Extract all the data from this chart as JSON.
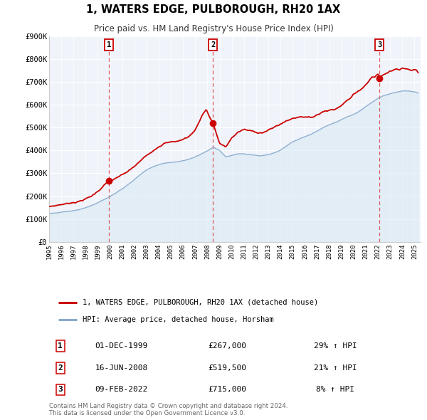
{
  "title": "1, WATERS EDGE, PULBOROUGH, RH20 1AX",
  "subtitle": "Price paid vs. HM Land Registry's House Price Index (HPI)",
  "property_label": "1, WATERS EDGE, PULBOROUGH, RH20 1AX (detached house)",
  "hpi_label": "HPI: Average price, detached house, Horsham",
  "property_color": "#cc0000",
  "hpi_color": "#88aacc",
  "hpi_fill_color": "#d8e8f4",
  "bg_color": "#f0f4fa",
  "ylim": [
    0,
    900000
  ],
  "yticks": [
    0,
    100000,
    200000,
    300000,
    400000,
    500000,
    600000,
    700000,
    800000,
    900000
  ],
  "ytick_labels": [
    "£0",
    "£100K",
    "£200K",
    "£300K",
    "£400K",
    "£500K",
    "£600K",
    "£700K",
    "£800K",
    "£900K"
  ],
  "xmin": 1995.0,
  "xmax": 2025.5,
  "sales": [
    {
      "num": 1,
      "date_str": "01-DEC-1999",
      "price": 267000,
      "pct": "29%",
      "x": 1999.92
    },
    {
      "num": 2,
      "date_str": "16-JUN-2008",
      "price": 519500,
      "pct": "21%",
      "x": 2008.46
    },
    {
      "num": 3,
      "date_str": "09-FEB-2022",
      "price": 715000,
      "pct": "8%",
      "x": 2022.12
    }
  ],
  "footer": "Contains HM Land Registry data © Crown copyright and database right 2024.\nThis data is licensed under the Open Government Licence v3.0.",
  "legend_border_color": "#aaaaaa",
  "sale_marker_color": "#cc0000",
  "vline_color": "#dd3333",
  "prop_anchors_x": [
    1995.0,
    1995.5,
    1996.0,
    1996.5,
    1997.0,
    1997.5,
    1998.0,
    1998.5,
    1999.0,
    1999.5,
    1999.92,
    2000.5,
    2001.0,
    2001.5,
    2002.0,
    2002.5,
    2003.0,
    2003.5,
    2004.0,
    2004.5,
    2005.0,
    2005.5,
    2006.0,
    2006.5,
    2007.0,
    2007.5,
    2007.9,
    2008.46,
    2009.0,
    2009.5,
    2010.0,
    2010.5,
    2011.0,
    2011.5,
    2012.0,
    2012.5,
    2013.0,
    2013.5,
    2014.0,
    2014.5,
    2015.0,
    2015.5,
    2016.0,
    2016.5,
    2017.0,
    2017.5,
    2018.0,
    2018.5,
    2019.0,
    2019.5,
    2020.0,
    2020.5,
    2021.0,
    2021.5,
    2022.0,
    2022.12,
    2022.5,
    2023.0,
    2023.5,
    2024.0,
    2024.5,
    2025.0,
    2025.3
  ],
  "prop_anchors_y": [
    155000,
    158000,
    163000,
    168000,
    172000,
    178000,
    188000,
    200000,
    220000,
    248000,
    267000,
    280000,
    295000,
    310000,
    330000,
    355000,
    378000,
    395000,
    415000,
    432000,
    438000,
    440000,
    448000,
    462000,
    490000,
    545000,
    580000,
    519500,
    430000,
    415000,
    455000,
    480000,
    492000,
    488000,
    478000,
    475000,
    490000,
    502000,
    515000,
    530000,
    540000,
    545000,
    545000,
    543000,
    555000,
    568000,
    574000,
    578000,
    595000,
    620000,
    645000,
    660000,
    685000,
    720000,
    730000,
    715000,
    730000,
    745000,
    755000,
    758000,
    752000,
    745000,
    740000
  ],
  "hpi_anchors_x": [
    1995.0,
    1995.5,
    1996.0,
    1996.5,
    1997.0,
    1997.5,
    1998.0,
    1998.5,
    1999.0,
    1999.5,
    2000.0,
    2000.5,
    2001.0,
    2001.5,
    2002.0,
    2002.5,
    2003.0,
    2003.5,
    2004.0,
    2004.5,
    2005.0,
    2005.5,
    2006.0,
    2006.5,
    2007.0,
    2007.5,
    2008.0,
    2008.5,
    2009.0,
    2009.5,
    2010.0,
    2010.5,
    2011.0,
    2011.5,
    2012.0,
    2012.5,
    2013.0,
    2013.5,
    2014.0,
    2014.5,
    2015.0,
    2015.5,
    2016.0,
    2016.5,
    2017.0,
    2017.5,
    2018.0,
    2018.5,
    2019.0,
    2019.5,
    2020.0,
    2020.5,
    2021.0,
    2021.5,
    2022.0,
    2022.5,
    2023.0,
    2023.5,
    2024.0,
    2024.5,
    2025.0,
    2025.3
  ],
  "hpi_anchors_y": [
    125000,
    127000,
    130000,
    133000,
    137000,
    142000,
    150000,
    160000,
    172000,
    185000,
    198000,
    215000,
    232000,
    252000,
    272000,
    295000,
    315000,
    328000,
    338000,
    345000,
    348000,
    350000,
    355000,
    362000,
    372000,
    385000,
    398000,
    415000,
    400000,
    372000,
    378000,
    385000,
    385000,
    382000,
    378000,
    377000,
    382000,
    390000,
    402000,
    420000,
    438000,
    450000,
    460000,
    470000,
    485000,
    500000,
    512000,
    522000,
    535000,
    548000,
    558000,
    572000,
    592000,
    610000,
    628000,
    640000,
    648000,
    655000,
    660000,
    660000,
    655000,
    650000
  ]
}
